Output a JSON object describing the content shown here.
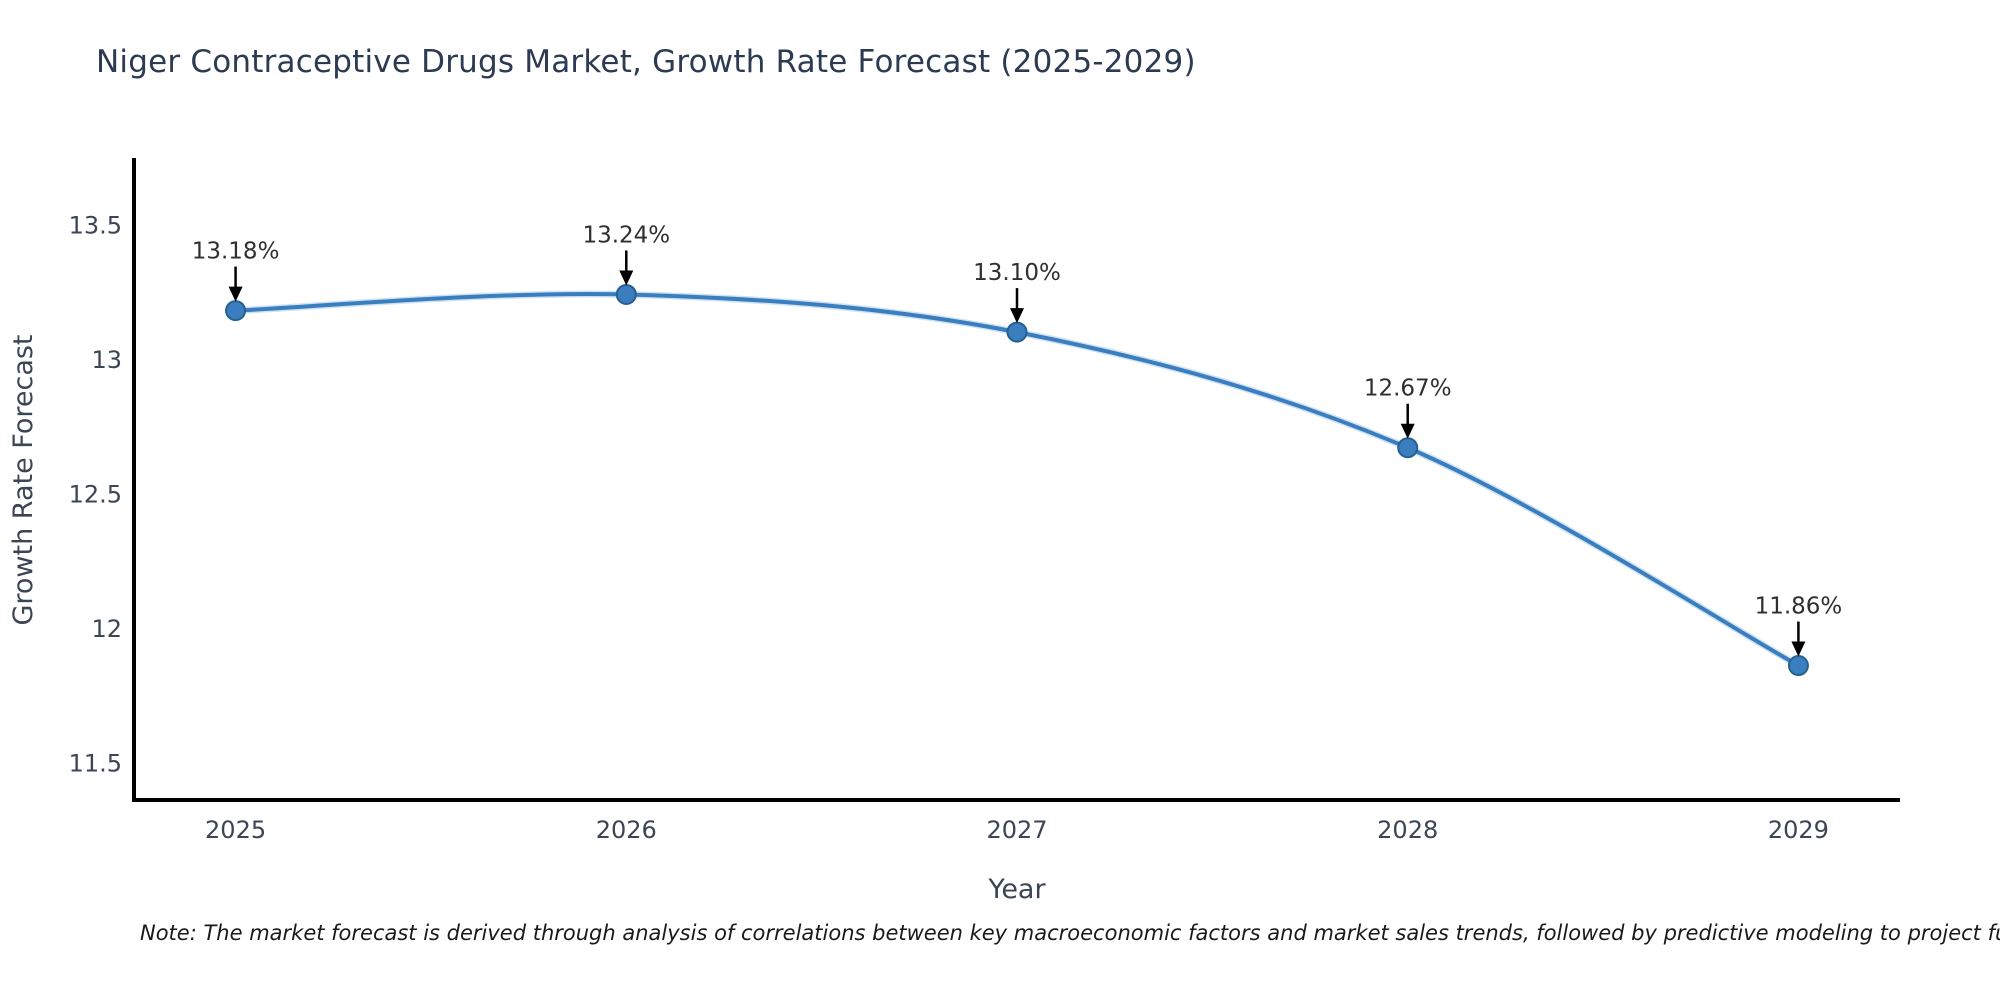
{
  "note": "Note: The market forecast is derived through analysis of correlations between key macroeconomic factors and market sales trends, followed by predictive modeling to project future sal",
  "chart_data": {
    "type": "line",
    "title": "Niger Contraceptive Drugs Market, Growth Rate Forecast (2025-2029)",
    "xlabel": "Year",
    "ylabel": "Growth Rate Forecast",
    "x": [
      2025,
      2026,
      2027,
      2028,
      2029
    ],
    "y": [
      13.18,
      13.24,
      13.1,
      12.67,
      11.86
    ],
    "point_labels": [
      "13.18%",
      "13.24%",
      "13.10%",
      "12.67%",
      "11.86%"
    ],
    "yticks": [
      13.5,
      13,
      12.5,
      12,
      11.5
    ],
    "ylim": [
      11.36,
      13.74
    ],
    "xlim": [
      2024.74,
      2029.26
    ],
    "grid": false,
    "legend": "none",
    "colors": {
      "line": "#3a7ebf",
      "line_halo": "#bcd7ee",
      "marker_fill": "#3a7ebf",
      "marker_edge": "#27608f",
      "axis": "#000000",
      "tick_label": "#3b4554",
      "axis_label": "#3b4554",
      "annotation_text": "#2f2f2f",
      "annotation_arrow": "#000000",
      "title": "#2c3a52"
    }
  }
}
